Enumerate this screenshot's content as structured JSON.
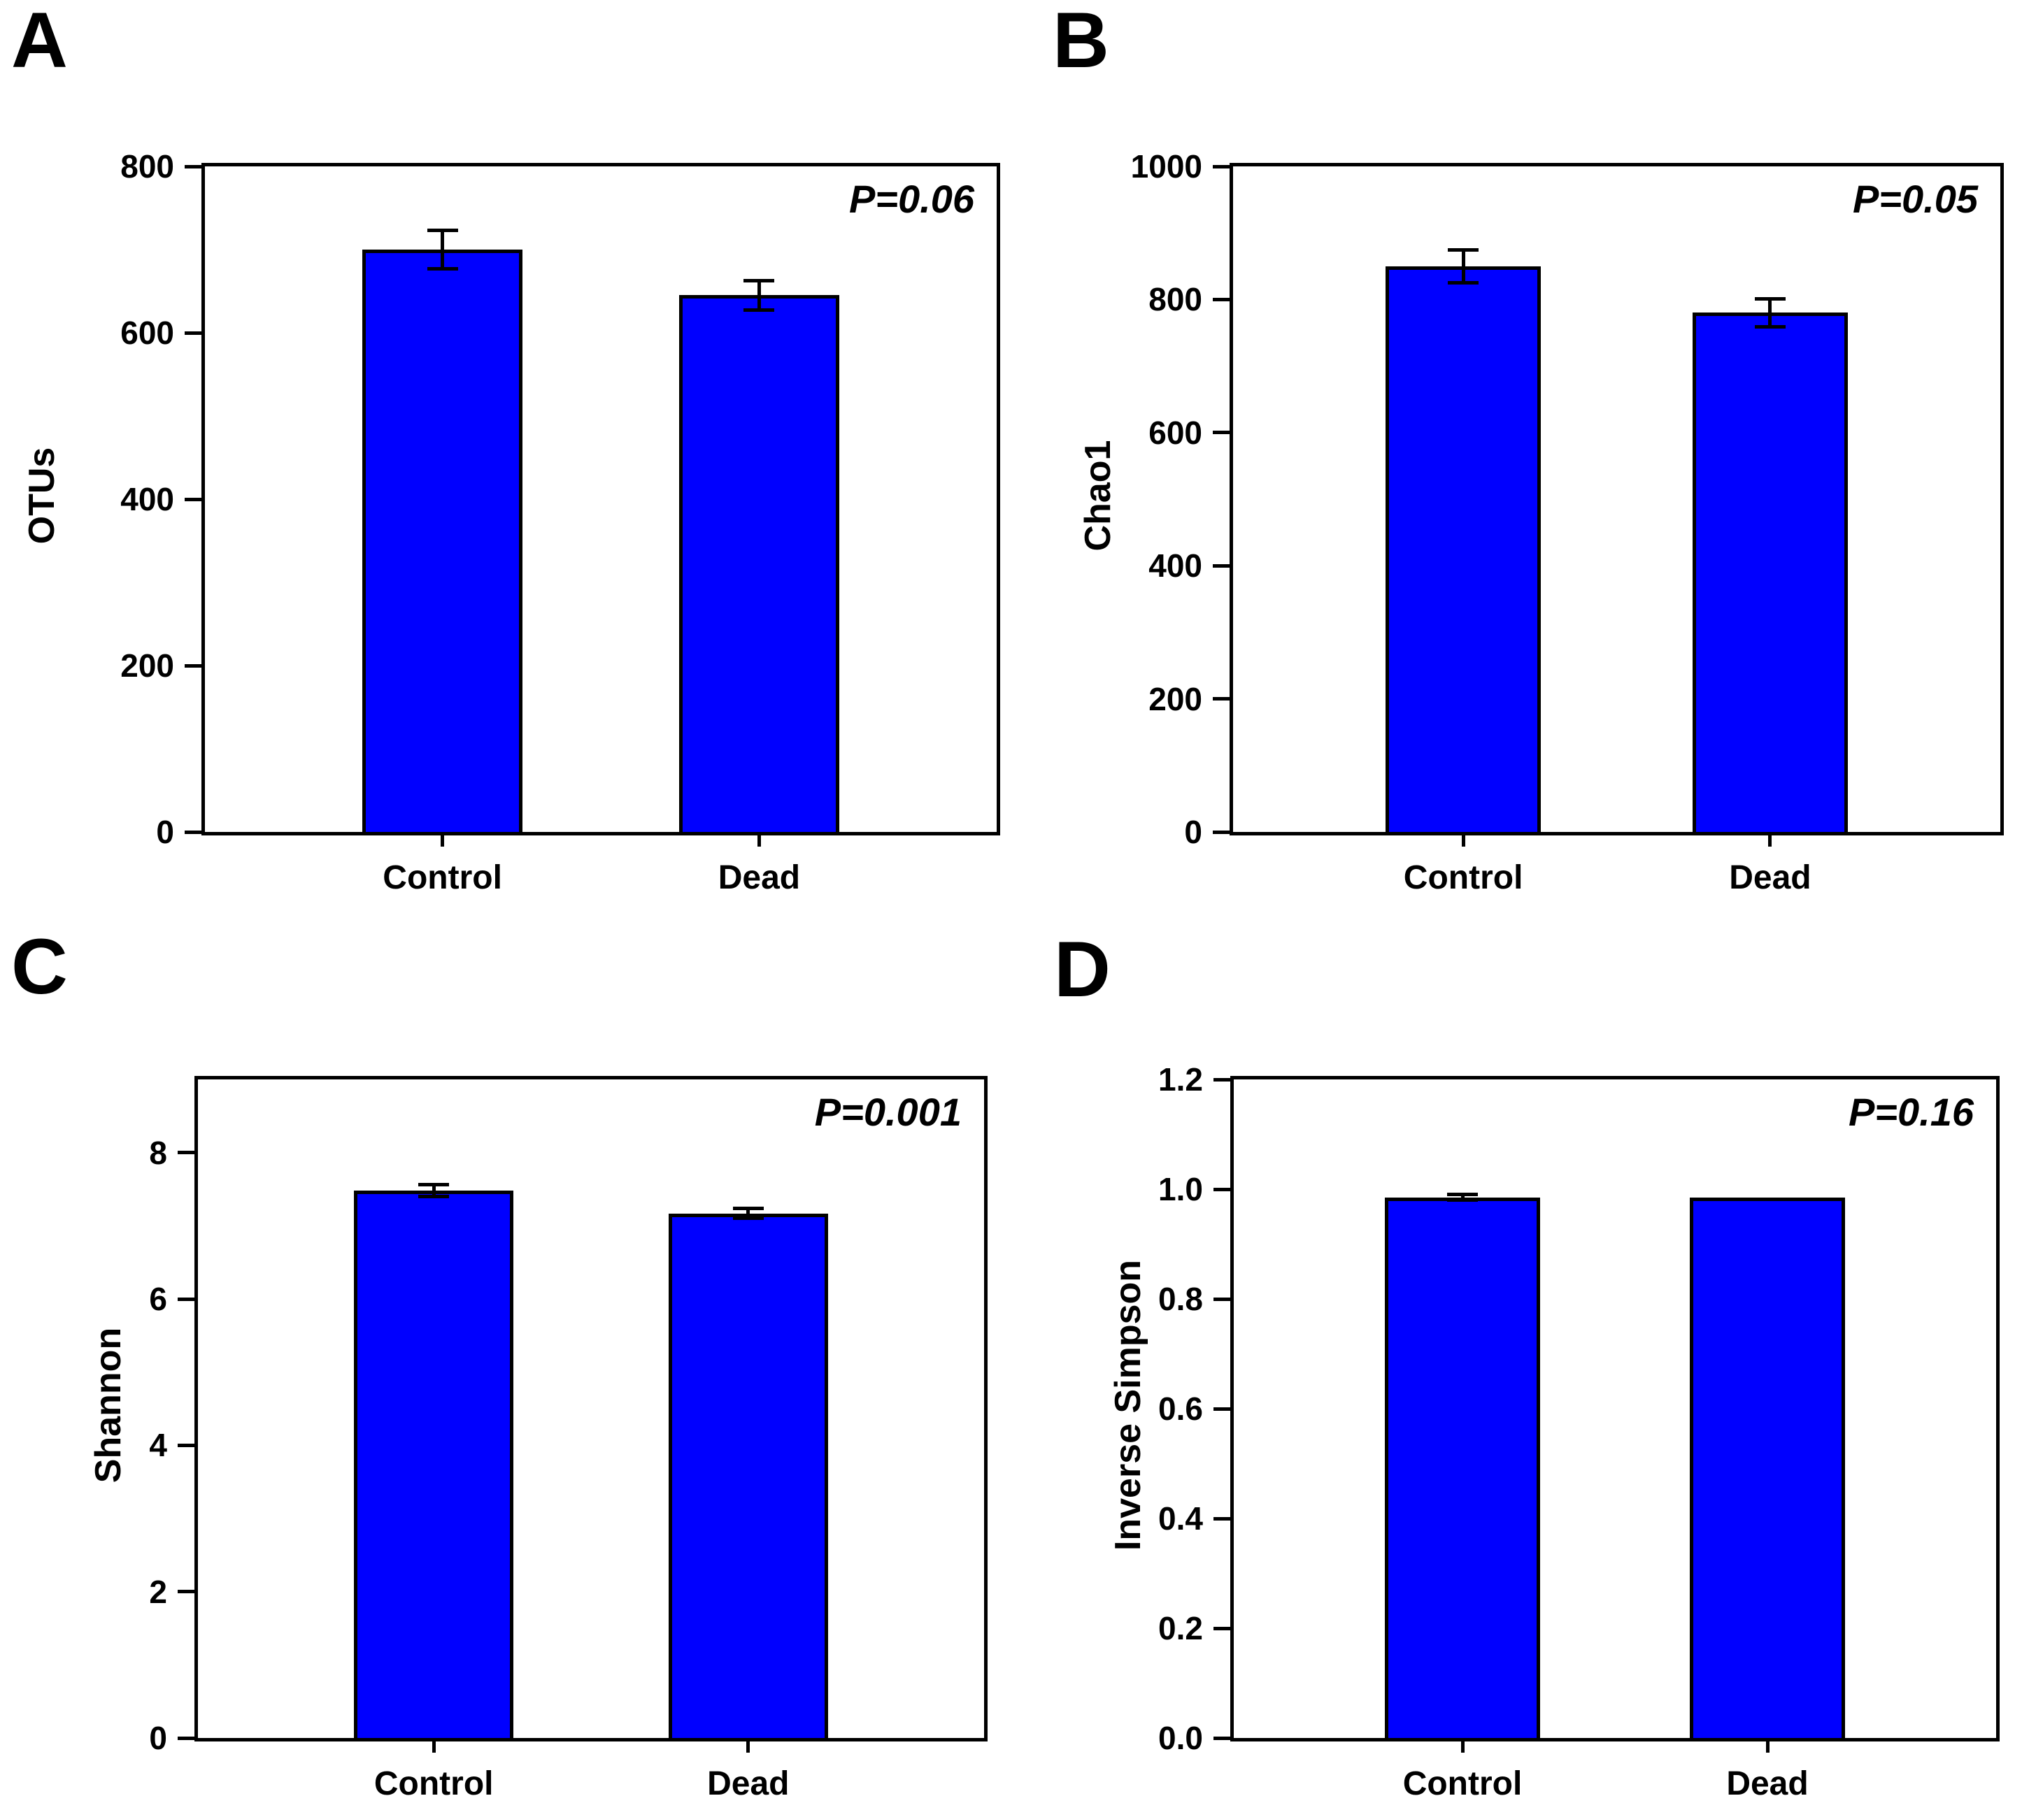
{
  "figure": {
    "bar_color": "#0000ff",
    "groups": [
      "Control",
      "Dead"
    ]
  },
  "chart_data": [
    {
      "type": "bar",
      "panel": "A",
      "title": "",
      "xlabel": "",
      "ylabel": "OTUs",
      "categories": [
        "Control",
        "Dead"
      ],
      "values": [
        700,
        645
      ],
      "errors": [
        23,
        18
      ],
      "ylim": [
        0,
        800
      ],
      "yticks": [
        "0",
        "200",
        "400",
        "600",
        "800"
      ],
      "annotation": "P=0.06",
      "legend": "none",
      "grid": "off"
    },
    {
      "type": "bar",
      "panel": "B",
      "title": "",
      "xlabel": "",
      "ylabel": "Chao1",
      "categories": [
        "Control",
        "Dead"
      ],
      "values": [
        850,
        780
      ],
      "errors": [
        25,
        21
      ],
      "ylim": [
        0,
        1000
      ],
      "yticks": [
        "0",
        "200",
        "400",
        "600",
        "800",
        "1000"
      ],
      "annotation": "P=0.05",
      "legend": "none",
      "grid": "off"
    },
    {
      "type": "bar",
      "panel": "C",
      "title": "",
      "xlabel": "",
      "ylabel": "Shannon",
      "categories": [
        "Control",
        "Dead"
      ],
      "values": [
        7.48,
        7.17
      ],
      "errors": [
        0.08,
        0.07
      ],
      "ylim": [
        0,
        9
      ],
      "yticks": [
        "0",
        "2",
        "4",
        "6",
        "8"
      ],
      "annotation": "P=0.001",
      "legend": "none",
      "grid": "off"
    },
    {
      "type": "bar",
      "panel": "D",
      "title": "",
      "xlabel": "",
      "ylabel": "Inverse Simpson",
      "categories": [
        "Control",
        "Dead"
      ],
      "values": [
        0.985,
        0.985
      ],
      "errors": [
        0.005,
        0
      ],
      "ylim": [
        0,
        1.2
      ],
      "yticks": [
        "0.0",
        "0.2",
        "0.4",
        "0.6",
        "0.8",
        "1.0",
        "1.2"
      ],
      "annotation": "P=0.16",
      "legend": "none",
      "grid": "off"
    }
  ]
}
